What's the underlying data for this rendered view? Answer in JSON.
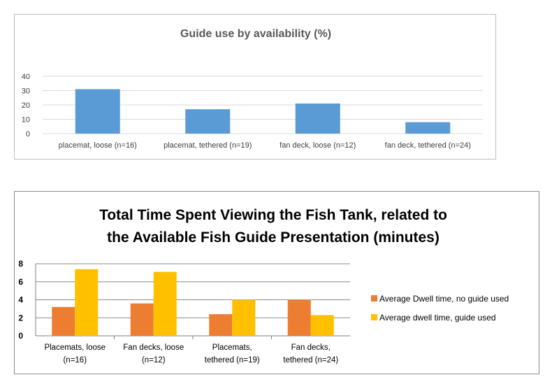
{
  "chart_data": [
    {
      "type": "bar",
      "title": "Guide use by availability (%)",
      "categories": [
        "placemat, loose (n=16)",
        "placemat, tethered (n=19)",
        "fan deck, loose (n=12)",
        "fan deck, tethered (n=24)"
      ],
      "series": [
        {
          "values": [
            31,
            17,
            21,
            8
          ],
          "color": "#5b9bd5"
        }
      ],
      "yticks": [
        "0",
        "10",
        "20",
        "30",
        "40"
      ],
      "ylim": [
        0,
        40
      ],
      "grid": true,
      "legend": "none"
    },
    {
      "type": "bar",
      "title_lines": [
        "Total Time Spent Viewing the Fish Tank, related to",
        "the Available Fish Guide Presentation (minutes)"
      ],
      "categories": [
        [
          "Placemats,  loose",
          "(n=16)"
        ],
        [
          "Fan decks, loose",
          "(n=12)"
        ],
        [
          "Placemats,",
          "tethered  (n=19)"
        ],
        [
          "Fan decks,",
          "tethered  (n=24)"
        ]
      ],
      "series": [
        {
          "name": "Average Dwell time, no guide used",
          "values": [
            3.2,
            3.6,
            2.4,
            4.0
          ],
          "color": "#ed7d31"
        },
        {
          "name": "Average dwell time, guide used",
          "values": [
            7.4,
            7.1,
            4.0,
            2.3
          ],
          "color": "#ffc000"
        }
      ],
      "yticks": [
        "0",
        "2",
        "4",
        "6",
        "8"
      ],
      "ylim": [
        0,
        8
      ],
      "grid": true,
      "legend": "right"
    }
  ]
}
